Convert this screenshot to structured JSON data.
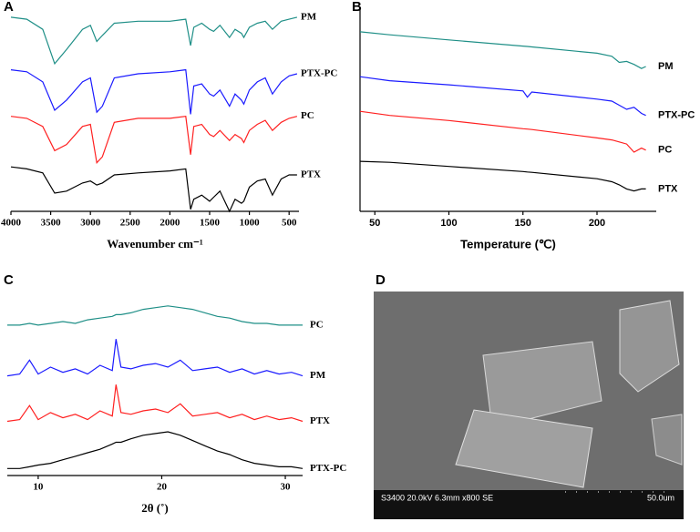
{
  "chart_data": [
    {
      "type": "line",
      "panel_label": "A",
      "x_label": "Wavenumber cm⁻¹",
      "x": [
        4000,
        3800,
        3600,
        3450,
        3300,
        3100,
        3000,
        2920,
        2850,
        2700,
        2400,
        2000,
        1800,
        1740,
        1700,
        1600,
        1500,
        1450,
        1370,
        1250,
        1180,
        1100,
        1070,
        1000,
        900,
        800,
        710,
        600,
        500,
        400
      ],
      "xlim": [
        4000,
        376
      ],
      "xticks": [
        4000,
        3500,
        3000,
        2500,
        2000,
        1500,
        1000,
        500
      ],
      "ylim": [
        0,
        100
      ],
      "series": [
        {
          "name": "PM",
          "color": "#1f8f87",
          "values": [
            96,
            95,
            90,
            73,
            80,
            90,
            92,
            84,
            87,
            93,
            94,
            94,
            95,
            82,
            91,
            93,
            90,
            89,
            92,
            86,
            90,
            88,
            86,
            91,
            93,
            94,
            90,
            94,
            95,
            96
          ]
        },
        {
          "name": "PTX-PC",
          "color": "#1a1aff",
          "values": [
            70,
            69,
            64,
            50,
            55,
            64,
            66,
            49,
            52,
            66,
            68,
            69,
            70,
            48,
            62,
            63,
            58,
            57,
            60,
            52,
            58,
            55,
            53,
            60,
            64,
            66,
            58,
            64,
            67,
            68
          ]
        },
        {
          "name": "PC",
          "color": "#ff2020",
          "values": [
            47,
            46,
            42,
            30,
            33,
            42,
            43,
            24,
            27,
            44,
            46,
            46,
            47,
            28,
            42,
            43,
            38,
            37,
            40,
            35,
            38,
            36,
            34,
            40,
            43,
            45,
            40,
            44,
            46,
            47
          ]
        },
        {
          "name": "PTX",
          "color": "#000000",
          "values": [
            22,
            21,
            19,
            9,
            10,
            14,
            15,
            13,
            14,
            18,
            19,
            20,
            21,
            1,
            6,
            8,
            5,
            7,
            10,
            0,
            6,
            4,
            5,
            12,
            15,
            16,
            8,
            16,
            18,
            18
          ]
        }
      ]
    },
    {
      "type": "line",
      "panel_label": "B",
      "x_label": "Temperature (℃)",
      "x": [
        40,
        60,
        100,
        150,
        153,
        156,
        200,
        210,
        215,
        220,
        225,
        230,
        233
      ],
      "xlim": [
        40,
        240
      ],
      "xticks": [
        50,
        100,
        150,
        200
      ],
      "ylim": [
        0,
        100
      ],
      "series": [
        {
          "name": "PM",
          "color": "#1f8f87",
          "values": [
            88,
            86.5,
            84,
            81,
            80.8,
            80.6,
            77.5,
            76,
            73,
            73.5,
            72,
            70,
            71
          ]
        },
        {
          "name": "PTX-PC",
          "color": "#1a1aff",
          "values": [
            66,
            64,
            62,
            59,
            56,
            58.5,
            55,
            54,
            52,
            50,
            51,
            48,
            47
          ]
        },
        {
          "name": "PC",
          "color": "#ff2020",
          "values": [
            49,
            47,
            44.5,
            40.5,
            40.3,
            40.1,
            36,
            35,
            34,
            33,
            29,
            31,
            30
          ]
        },
        {
          "name": "PTX",
          "color": "#000000",
          "values": [
            24.5,
            24,
            22,
            19.5,
            19.3,
            19.1,
            16,
            14.5,
            13,
            11,
            10,
            11,
            11
          ]
        }
      ]
    },
    {
      "type": "line",
      "panel_label": "C",
      "x_label": "2θ (˚)",
      "x": [
        7.5,
        8.5,
        9.3,
        10,
        11,
        12,
        13,
        14,
        15,
        16,
        16.3,
        16.7,
        17.5,
        18.5,
        19.5,
        20.5,
        21.5,
        22.5,
        23.5,
        24.5,
        25.5,
        26.5,
        27.5,
        28.5,
        29.5,
        30.5,
        31.4
      ],
      "xlim": [
        7.5,
        31.4
      ],
      "xticks": [
        10,
        20,
        30
      ],
      "ylim": [
        0,
        100
      ],
      "series": [
        {
          "name": "PC",
          "color": "#1f8f87",
          "values": [
            86,
            86,
            87,
            86,
            87,
            88,
            87,
            89,
            90,
            91,
            92,
            92,
            93,
            95,
            96,
            97,
            96,
            95,
            93,
            91,
            90,
            88,
            87,
            87,
            86,
            86,
            86
          ]
        },
        {
          "name": "PM",
          "color": "#1a1aff",
          "values": [
            57,
            58,
            66,
            58,
            62,
            59,
            61,
            58,
            63,
            60,
            78,
            62,
            61,
            63,
            64,
            62,
            66,
            60,
            61,
            62,
            59,
            61,
            58,
            60,
            58,
            59,
            57
          ]
        },
        {
          "name": "PTX",
          "color": "#ff2020",
          "values": [
            31,
            32,
            40,
            32,
            36,
            33,
            35,
            32,
            37,
            34,
            52,
            36,
            35,
            37,
            38,
            36,
            41,
            34,
            35,
            36,
            33,
            35,
            32,
            34,
            32,
            33,
            31
          ]
        },
        {
          "name": "PTX-PC",
          "color": "#000000",
          "values": [
            4,
            4,
            5,
            6,
            7,
            9,
            11,
            13,
            15,
            18,
            19,
            19,
            21,
            23,
            24,
            25,
            23,
            20,
            17,
            14,
            12,
            9,
            7,
            6,
            5,
            5,
            4
          ]
        }
      ]
    }
  ],
  "panel_d": {
    "panel_label": "D",
    "info": "S3400 20.0kV 6.3mm x800 SE",
    "scale": "50.0um"
  }
}
